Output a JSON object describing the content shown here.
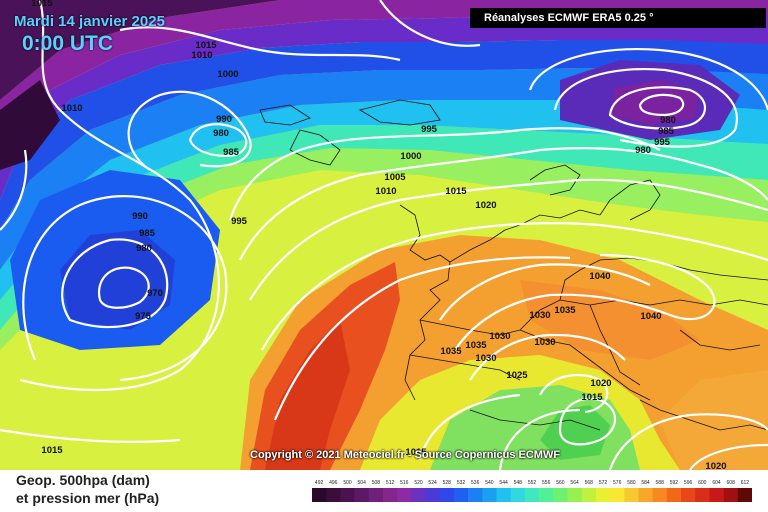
{
  "header": {
    "date": "Mardi 14 janvier 2025",
    "time": "0:00 UTC",
    "source": "Réanalyses ECMWF ERA5 0.25 °"
  },
  "credit": "Copyright © 2021 Meteociel.fr - Source Copernicus ECMWF",
  "legend": {
    "line1": "Geop. 500hpa (dam)",
    "line2": "et pression mer (hPa)"
  },
  "scale": {
    "values": [
      "492",
      "496",
      "500",
      "504",
      "508",
      "512",
      "516",
      "520",
      "524",
      "528",
      "532",
      "536",
      "540",
      "544",
      "548",
      "552",
      "556",
      "560",
      "564",
      "568",
      "572",
      "576",
      "580",
      "584",
      "588",
      "592",
      "596",
      "600",
      "604",
      "608",
      "612"
    ],
    "colors": [
      "#2a0a2a",
      "#3a0e3a",
      "#4a1250",
      "#5c1a66",
      "#70207a",
      "#84268e",
      "#8e2aa6",
      "#6a32c0",
      "#4a3ad6",
      "#3048ea",
      "#2060f0",
      "#1a80f4",
      "#1aa0f0",
      "#20c0f0",
      "#30d8e0",
      "#40e8c0",
      "#50f098",
      "#70f070",
      "#98f050",
      "#c0f040",
      "#e8f030",
      "#f8e830",
      "#f8c830",
      "#f8a828",
      "#f88820",
      "#f06818",
      "#e84818",
      "#d83018",
      "#c81818",
      "#a01010",
      "#600808"
    ]
  },
  "isobars": [
    {
      "label": "1015"
    },
    {
      "label": "1015"
    },
    {
      "label": "1010"
    },
    {
      "label": "1000"
    },
    {
      "label": "1010"
    },
    {
      "label": "990"
    },
    {
      "label": "980"
    },
    {
      "label": "985"
    },
    {
      "label": "995"
    },
    {
      "label": "1000"
    },
    {
      "label": "1005"
    },
    {
      "label": "1010"
    },
    {
      "label": "1015"
    },
    {
      "label": "1020"
    },
    {
      "label": "995"
    },
    {
      "label": "990"
    },
    {
      "label": "985"
    },
    {
      "label": "980"
    },
    {
      "label": "975"
    },
    {
      "label": "970"
    },
    {
      "label": "980"
    },
    {
      "label": "985"
    },
    {
      "label": "995"
    },
    {
      "label": "980"
    },
    {
      "label": "985"
    },
    {
      "label": "990"
    },
    {
      "label": "995"
    },
    {
      "label": "1040"
    },
    {
      "label": "1040"
    },
    {
      "label": "1035"
    },
    {
      "label": "1030"
    },
    {
      "label": "1035"
    },
    {
      "label": "1030"
    },
    {
      "label": "1030"
    },
    {
      "label": "1025"
    },
    {
      "label": "1030"
    },
    {
      "label": "1020"
    },
    {
      "label": "1015"
    },
    {
      "label": "1035"
    },
    {
      "label": "1015"
    },
    {
      "label": "1015"
    },
    {
      "label": "1020"
    }
  ]
}
